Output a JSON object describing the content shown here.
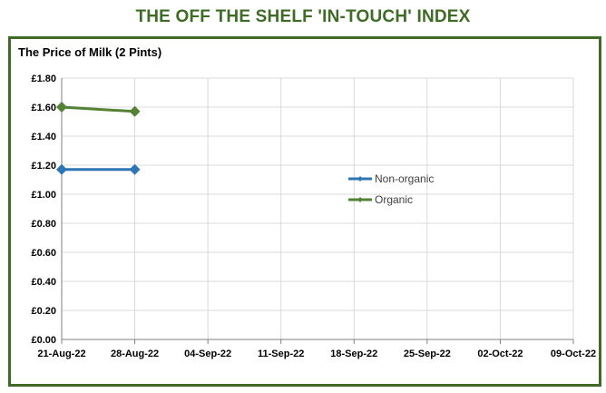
{
  "header": {
    "title": "THE OFF THE SHELF 'IN-TOUCH' INDEX"
  },
  "colors": {
    "brand_green": "#3e6b25",
    "non_organic": "#2e75b6",
    "organic": "#548235",
    "grid": "#d9d9d9"
  },
  "chart_data": {
    "type": "line",
    "title": "The Price of Milk (2 Pints)",
    "xlabel": "",
    "ylabel": "",
    "x_ticks": [
      "21-Aug-22",
      "28-Aug-22",
      "04-Sep-22",
      "11-Sep-22",
      "18-Sep-22",
      "25-Sep-22",
      "02-Oct-22",
      "09-Oct-22"
    ],
    "y_ticks": [
      "£0.00",
      "£0.20",
      "£0.40",
      "£0.60",
      "£0.80",
      "£1.00",
      "£1.20",
      "£1.40",
      "£1.60",
      "£1.80"
    ],
    "ylim": [
      0,
      1.8
    ],
    "grid": true,
    "legend_position": "right",
    "series": [
      {
        "name": "Non-organic",
        "points": [
          {
            "x": "21-Aug-22",
            "y": 1.17
          },
          {
            "x": "28-Aug-22",
            "y": 1.17
          }
        ],
        "color": "#2e75b6"
      },
      {
        "name": "Organic",
        "points": [
          {
            "x": "21-Aug-22",
            "y": 1.6
          },
          {
            "x": "28-Aug-22",
            "y": 1.57
          }
        ],
        "color": "#548235"
      }
    ]
  }
}
